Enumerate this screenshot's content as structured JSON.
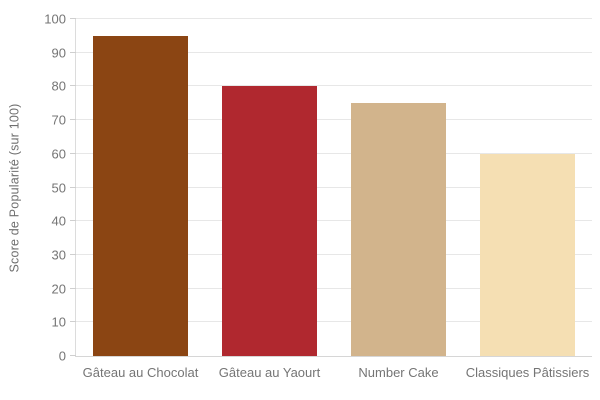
{
  "chart_data": {
    "type": "bar",
    "categories": [
      "Gâteau au Chocolat",
      "Gâteau au Yaourt",
      "Number Cake",
      "Classiques Pâtissiers"
    ],
    "values": [
      95,
      80,
      75,
      60
    ],
    "bar_colors": [
      "#8B4513",
      "#B0282F",
      "#D2B48C",
      "#F5DFB3"
    ],
    "title": "",
    "xlabel": "",
    "ylabel": "Score de Popularité (sur 100)",
    "ylim": [
      0,
      100
    ],
    "ytick_step": 10,
    "ytick_labels": [
      "0",
      "10",
      "20",
      "30",
      "40",
      "50",
      "60",
      "70",
      "80",
      "90",
      "100"
    ],
    "grid": "horizontal",
    "legend": "none",
    "colors": {
      "axis_text": "#757575",
      "gridline": "#e7e7e7",
      "axis_line": "#d6d6d6",
      "background": "#ffffff"
    }
  }
}
